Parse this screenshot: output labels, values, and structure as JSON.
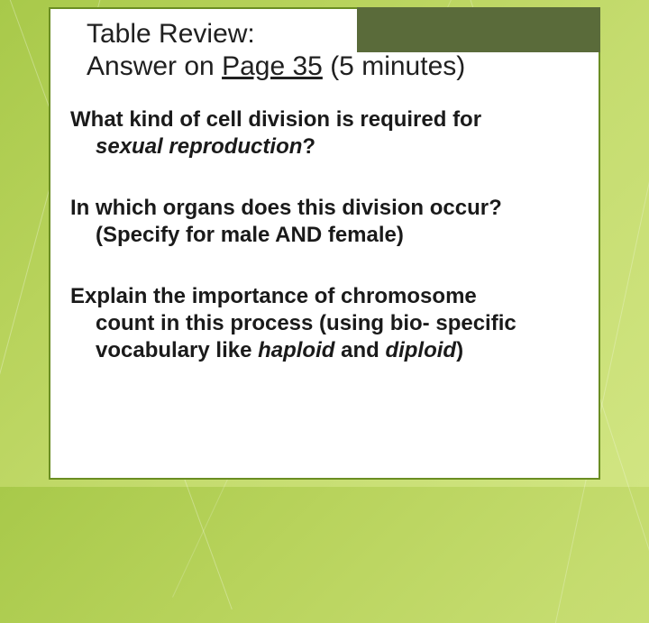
{
  "slide": {
    "title_line1": "Table Review:",
    "title_line2_prefix": "Answer on ",
    "title_line2_underlined": "Page 35",
    "title_line2_suffix": " (5 minutes)",
    "q1_l1": "What kind of cell division is required for",
    "q1_em": "sexual reproduction",
    "q1_after": "?",
    "q2_l1": "In which organs does this division occur?",
    "q2_l2": "(Specify for male AND female)",
    "q3_l1": "Explain the importance of chromosome",
    "q3_l2": "count in this process (using bio- specific",
    "q3_l3_pre": "vocabulary like ",
    "q3_em1": "haploid",
    "q3_mid": " and ",
    "q3_em2": "diploid",
    "q3_after": ")"
  },
  "style": {
    "card_border": "#6b8e23",
    "accent_box": "#5a6b3a",
    "text_color": "#1a1a1a",
    "title_fontsize": 30,
    "body_fontsize": 24
  }
}
